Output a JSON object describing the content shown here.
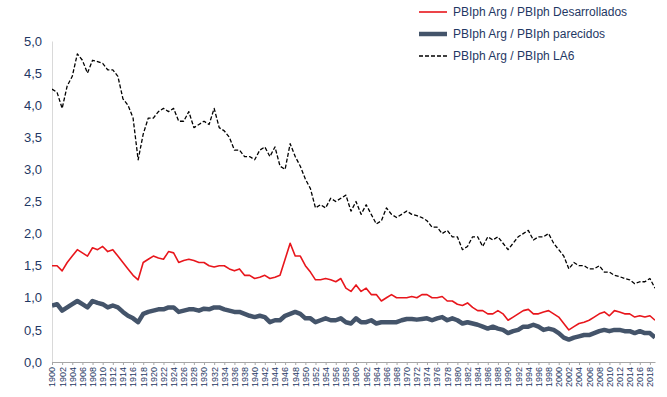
{
  "chart_data": {
    "type": "line",
    "x": [
      1900,
      1901,
      1902,
      1903,
      1904,
      1905,
      1906,
      1907,
      1908,
      1909,
      1910,
      1911,
      1912,
      1913,
      1914,
      1915,
      1916,
      1917,
      1918,
      1919,
      1920,
      1921,
      1922,
      1923,
      1924,
      1925,
      1926,
      1927,
      1928,
      1929,
      1930,
      1931,
      1932,
      1933,
      1934,
      1935,
      1936,
      1937,
      1938,
      1939,
      1940,
      1941,
      1942,
      1943,
      1944,
      1945,
      1946,
      1947,
      1948,
      1949,
      1950,
      1951,
      1952,
      1953,
      1954,
      1955,
      1956,
      1957,
      1958,
      1959,
      1960,
      1961,
      1962,
      1963,
      1964,
      1965,
      1966,
      1967,
      1968,
      1969,
      1970,
      1971,
      1972,
      1973,
      1974,
      1975,
      1976,
      1977,
      1978,
      1979,
      1980,
      1981,
      1982,
      1983,
      1984,
      1985,
      1986,
      1987,
      1988,
      1989,
      1990,
      1991,
      1992,
      1993,
      1994,
      1995,
      1996,
      1997,
      1998,
      1999,
      2000,
      2001,
      2002,
      2003,
      2004,
      2005,
      2006,
      2007,
      2008,
      2009,
      2010,
      2011,
      2012,
      2013,
      2014,
      2015,
      2016,
      2017,
      2018,
      2019
    ],
    "series": [
      {
        "name": "PBIph Arg / PBIph Desarrollados",
        "color": "#e8161c",
        "line_style": "solid",
        "values": [
          1.5,
          1.5,
          1.42,
          1.55,
          1.65,
          1.75,
          1.7,
          1.65,
          1.78,
          1.75,
          1.8,
          1.72,
          1.75,
          1.65,
          1.55,
          1.45,
          1.35,
          1.28,
          1.55,
          1.6,
          1.65,
          1.62,
          1.6,
          1.72,
          1.7,
          1.55,
          1.58,
          1.6,
          1.58,
          1.55,
          1.55,
          1.5,
          1.48,
          1.5,
          1.5,
          1.45,
          1.42,
          1.45,
          1.35,
          1.35,
          1.3,
          1.32,
          1.35,
          1.3,
          1.32,
          1.35,
          1.6,
          1.85,
          1.65,
          1.65,
          1.5,
          1.4,
          1.28,
          1.28,
          1.3,
          1.28,
          1.25,
          1.3,
          1.15,
          1.1,
          1.2,
          1.1,
          1.15,
          1.05,
          1.05,
          0.95,
          1.0,
          1.05,
          1.0,
          1.0,
          1.0,
          1.02,
          1.0,
          1.05,
          1.05,
          1.0,
          1.0,
          1.02,
          0.95,
          0.95,
          0.9,
          0.88,
          0.92,
          0.85,
          0.8,
          0.8,
          0.75,
          0.75,
          0.8,
          0.75,
          0.65,
          0.7,
          0.75,
          0.8,
          0.82,
          0.75,
          0.75,
          0.78,
          0.8,
          0.75,
          0.7,
          0.6,
          0.5,
          0.55,
          0.6,
          0.62,
          0.65,
          0.7,
          0.75,
          0.78,
          0.72,
          0.8,
          0.78,
          0.75,
          0.75,
          0.7,
          0.72,
          0.7,
          0.72,
          0.65
        ]
      },
      {
        "name": "PBIph Arg / PBIph parecidos",
        "color": "#44546a",
        "line_style": "solid",
        "values": [
          0.88,
          0.9,
          0.8,
          0.85,
          0.9,
          0.95,
          0.9,
          0.85,
          0.95,
          0.92,
          0.9,
          0.85,
          0.88,
          0.85,
          0.78,
          0.72,
          0.68,
          0.62,
          0.75,
          0.78,
          0.8,
          0.82,
          0.82,
          0.85,
          0.85,
          0.78,
          0.8,
          0.82,
          0.82,
          0.8,
          0.83,
          0.82,
          0.85,
          0.85,
          0.82,
          0.8,
          0.78,
          0.78,
          0.75,
          0.72,
          0.7,
          0.72,
          0.7,
          0.62,
          0.65,
          0.65,
          0.72,
          0.75,
          0.78,
          0.75,
          0.68,
          0.68,
          0.62,
          0.65,
          0.68,
          0.65,
          0.65,
          0.68,
          0.62,
          0.6,
          0.68,
          0.62,
          0.62,
          0.65,
          0.6,
          0.62,
          0.62,
          0.62,
          0.62,
          0.65,
          0.67,
          0.67,
          0.66,
          0.67,
          0.68,
          0.65,
          0.68,
          0.7,
          0.65,
          0.68,
          0.65,
          0.6,
          0.62,
          0.6,
          0.58,
          0.55,
          0.52,
          0.55,
          0.52,
          0.5,
          0.45,
          0.48,
          0.5,
          0.55,
          0.55,
          0.58,
          0.55,
          0.5,
          0.52,
          0.5,
          0.45,
          0.38,
          0.35,
          0.38,
          0.4,
          0.42,
          0.42,
          0.45,
          0.48,
          0.5,
          0.48,
          0.5,
          0.5,
          0.48,
          0.48,
          0.45,
          0.48,
          0.45,
          0.45,
          0.38
        ]
      },
      {
        "name": "PBIph Arg / PBIph LA6",
        "color": "#000000",
        "line_style": "dashed",
        "values": [
          4.25,
          4.2,
          3.95,
          4.3,
          4.45,
          4.8,
          4.7,
          4.5,
          4.7,
          4.68,
          4.65,
          4.55,
          4.55,
          4.45,
          4.1,
          4.0,
          3.8,
          3.15,
          3.55,
          3.8,
          3.8,
          3.9,
          3.95,
          3.9,
          3.95,
          3.75,
          3.75,
          3.9,
          3.65,
          3.7,
          3.75,
          3.7,
          3.95,
          3.65,
          3.6,
          3.5,
          3.3,
          3.3,
          3.2,
          3.2,
          3.15,
          3.3,
          3.35,
          3.2,
          3.35,
          3.05,
          3.0,
          3.4,
          3.2,
          3.05,
          2.85,
          2.7,
          2.4,
          2.45,
          2.4,
          2.55,
          2.5,
          2.55,
          2.6,
          2.35,
          2.5,
          2.3,
          2.45,
          2.3,
          2.15,
          2.2,
          2.4,
          2.3,
          2.25,
          2.3,
          2.35,
          2.3,
          2.28,
          2.25,
          2.2,
          2.1,
          2.1,
          2.0,
          2.05,
          1.95,
          1.95,
          1.75,
          1.8,
          1.95,
          1.95,
          1.8,
          1.95,
          1.9,
          1.95,
          1.85,
          1.75,
          1.85,
          1.95,
          2.0,
          2.05,
          1.9,
          1.95,
          1.95,
          2.0,
          1.85,
          1.75,
          1.65,
          1.45,
          1.55,
          1.5,
          1.5,
          1.45,
          1.45,
          1.5,
          1.4,
          1.4,
          1.35,
          1.33,
          1.3,
          1.28,
          1.22,
          1.25,
          1.25,
          1.3,
          1.15
        ]
      }
    ],
    "xlim": [
      1900,
      2019
    ],
    "xticks": [
      1900,
      1902,
      1904,
      1906,
      1908,
      1910,
      1912,
      1914,
      1916,
      1918,
      1920,
      1922,
      1924,
      1926,
      1928,
      1930,
      1932,
      1934,
      1936,
      1938,
      1940,
      1942,
      1944,
      1946,
      1948,
      1950,
      1952,
      1954,
      1956,
      1958,
      1960,
      1962,
      1964,
      1966,
      1968,
      1970,
      1972,
      1974,
      1976,
      1978,
      1980,
      1982,
      1984,
      1986,
      1988,
      1990,
      1992,
      1994,
      1996,
      1998,
      2000,
      2002,
      2004,
      2006,
      2008,
      2010,
      2012,
      2014,
      2016,
      2018
    ],
    "ylim": [
      0,
      5
    ],
    "yticks": [
      {
        "value": 0,
        "label": "0,0"
      },
      {
        "value": 0.5,
        "label": "0,5"
      },
      {
        "value": 1,
        "label": "1,0"
      },
      {
        "value": 1.5,
        "label": "1,5"
      },
      {
        "value": 2,
        "label": "2,0"
      },
      {
        "value": 2.5,
        "label": "2,5"
      },
      {
        "value": 3,
        "label": "3,0"
      },
      {
        "value": 3.5,
        "label": "3,5"
      },
      {
        "value": 4,
        "label": "4,0"
      },
      {
        "value": 4.5,
        "label": "4,5"
      },
      {
        "value": 5,
        "label": "5,0"
      }
    ],
    "grid": false,
    "legend": "upper right"
  }
}
